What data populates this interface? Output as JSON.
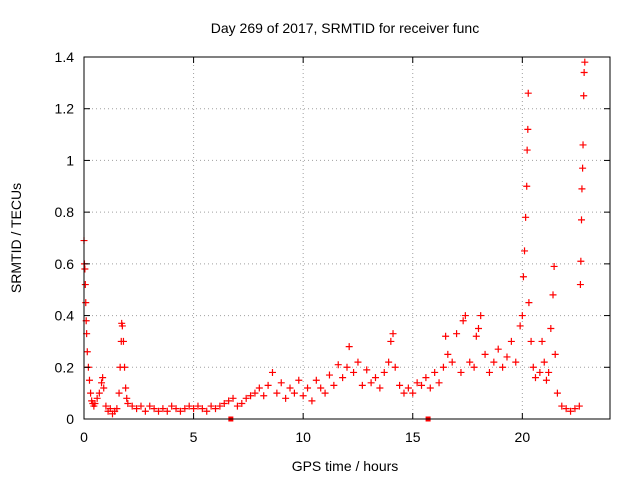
{
  "chart_data": {
    "type": "scatter",
    "title": "Day 269 of 2017, SRMTID for receiver func",
    "xlabel": "GPS time / hours",
    "ylabel": "SRMTID / TECUs",
    "xlim": [
      0,
      24
    ],
    "ylim": [
      0,
      1.4
    ],
    "x_ticks": [
      0,
      5,
      10,
      15,
      20
    ],
    "x_tick_labels": [
      "0",
      "5",
      "10",
      "15",
      "20"
    ],
    "y_ticks": [
      0,
      0.2,
      0.4,
      0.6,
      0.8,
      1.0,
      1.2,
      1.4
    ],
    "y_tick_labels": [
      "0",
      "0.2",
      "0.4",
      "0.6",
      "0.8",
      "1",
      "1.2",
      "1.4"
    ],
    "grid": true,
    "marker": "plus",
    "series": [
      {
        "name": "SRMTID",
        "color": "#ff0000",
        "points": [
          [
            0.0,
            0.69
          ],
          [
            0.02,
            0.6
          ],
          [
            0.04,
            0.58
          ],
          [
            0.06,
            0.52
          ],
          [
            0.08,
            0.45
          ],
          [
            0.1,
            0.38
          ],
          [
            0.12,
            0.33
          ],
          [
            0.15,
            0.26
          ],
          [
            0.2,
            0.2
          ],
          [
            0.25,
            0.15
          ],
          [
            0.3,
            0.1
          ],
          [
            0.35,
            0.07
          ],
          [
            0.4,
            0.06
          ],
          [
            0.45,
            0.05
          ],
          [
            0.5,
            0.06
          ],
          [
            0.6,
            0.08
          ],
          [
            0.7,
            0.1
          ],
          [
            0.8,
            0.14
          ],
          [
            0.85,
            0.16
          ],
          [
            0.9,
            0.12
          ],
          [
            1.0,
            0.05
          ],
          [
            1.1,
            0.03
          ],
          [
            1.2,
            0.04
          ],
          [
            1.3,
            0.02
          ],
          [
            1.4,
            0.03
          ],
          [
            1.5,
            0.04
          ],
          [
            1.6,
            0.1
          ],
          [
            1.65,
            0.2
          ],
          [
            1.7,
            0.3
          ],
          [
            1.72,
            0.37
          ],
          [
            1.75,
            0.36
          ],
          [
            1.8,
            0.3
          ],
          [
            1.85,
            0.2
          ],
          [
            1.9,
            0.12
          ],
          [
            1.95,
            0.08
          ],
          [
            2.0,
            0.06
          ],
          [
            2.2,
            0.05
          ],
          [
            2.4,
            0.04
          ],
          [
            2.6,
            0.05
          ],
          [
            2.8,
            0.03
          ],
          [
            3.0,
            0.05
          ],
          [
            3.2,
            0.04
          ],
          [
            3.4,
            0.03
          ],
          [
            3.6,
            0.04
          ],
          [
            3.8,
            0.03
          ],
          [
            4.0,
            0.05
          ],
          [
            4.2,
            0.04
          ],
          [
            4.4,
            0.03
          ],
          [
            4.6,
            0.04
          ],
          [
            4.8,
            0.05
          ],
          [
            5.0,
            0.04
          ],
          [
            5.2,
            0.05
          ],
          [
            5.4,
            0.04
          ],
          [
            5.6,
            0.03
          ],
          [
            5.8,
            0.05
          ],
          [
            6.0,
            0.04
          ],
          [
            6.2,
            0.05
          ],
          [
            6.4,
            0.06
          ],
          [
            6.6,
            0.07
          ],
          [
            6.8,
            0.08
          ],
          [
            7.0,
            0.05
          ],
          [
            7.2,
            0.06
          ],
          [
            7.4,
            0.08
          ],
          [
            7.6,
            0.09
          ],
          [
            7.8,
            0.1
          ],
          [
            8.0,
            0.12
          ],
          [
            8.2,
            0.09
          ],
          [
            8.4,
            0.13
          ],
          [
            8.6,
            0.18
          ],
          [
            8.8,
            0.1
          ],
          [
            9.0,
            0.14
          ],
          [
            9.2,
            0.08
          ],
          [
            9.4,
            0.12
          ],
          [
            9.6,
            0.1
          ],
          [
            9.8,
            0.15
          ],
          [
            10.0,
            0.09
          ],
          [
            10.2,
            0.12
          ],
          [
            10.4,
            0.07
          ],
          [
            10.6,
            0.15
          ],
          [
            10.8,
            0.12
          ],
          [
            11.0,
            0.1
          ],
          [
            11.2,
            0.17
          ],
          [
            11.4,
            0.13
          ],
          [
            11.6,
            0.21
          ],
          [
            11.8,
            0.16
          ],
          [
            12.0,
            0.2
          ],
          [
            12.1,
            0.28
          ],
          [
            12.3,
            0.18
          ],
          [
            12.5,
            0.22
          ],
          [
            12.7,
            0.13
          ],
          [
            12.9,
            0.19
          ],
          [
            13.1,
            0.14
          ],
          [
            13.3,
            0.16
          ],
          [
            13.5,
            0.12
          ],
          [
            13.7,
            0.18
          ],
          [
            13.9,
            0.22
          ],
          [
            14.0,
            0.3
          ],
          [
            14.1,
            0.33
          ],
          [
            14.2,
            0.2
          ],
          [
            14.4,
            0.13
          ],
          [
            14.6,
            0.1
          ],
          [
            14.8,
            0.12
          ],
          [
            15.0,
            0.1
          ],
          [
            15.2,
            0.14
          ],
          [
            15.4,
            0.13
          ],
          [
            15.6,
            0.16
          ],
          [
            15.8,
            0.12
          ],
          [
            16.0,
            0.18
          ],
          [
            16.2,
            0.14
          ],
          [
            16.4,
            0.2
          ],
          [
            16.5,
            0.32
          ],
          [
            16.6,
            0.25
          ],
          [
            16.8,
            0.22
          ],
          [
            17.0,
            0.33
          ],
          [
            17.2,
            0.18
          ],
          [
            17.3,
            0.38
          ],
          [
            17.4,
            0.4
          ],
          [
            17.6,
            0.22
          ],
          [
            17.8,
            0.2
          ],
          [
            17.9,
            0.32
          ],
          [
            18.0,
            0.35
          ],
          [
            18.1,
            0.4
          ],
          [
            18.3,
            0.25
          ],
          [
            18.5,
            0.18
          ],
          [
            18.7,
            0.22
          ],
          [
            18.9,
            0.27
          ],
          [
            19.1,
            0.2
          ],
          [
            19.3,
            0.24
          ],
          [
            19.5,
            0.3
          ],
          [
            19.7,
            0.22
          ],
          [
            19.9,
            0.36
          ],
          [
            20.0,
            0.4
          ],
          [
            20.05,
            0.55
          ],
          [
            20.1,
            0.65
          ],
          [
            20.15,
            0.78
          ],
          [
            20.2,
            0.9
          ],
          [
            20.22,
            1.04
          ],
          [
            20.25,
            1.12
          ],
          [
            20.27,
            1.26
          ],
          [
            20.3,
            0.45
          ],
          [
            20.4,
            0.3
          ],
          [
            20.5,
            0.2
          ],
          [
            20.6,
            0.16
          ],
          [
            20.8,
            0.18
          ],
          [
            20.9,
            0.3
          ],
          [
            21.0,
            0.22
          ],
          [
            21.1,
            0.15
          ],
          [
            21.2,
            0.18
          ],
          [
            21.3,
            0.35
          ],
          [
            21.4,
            0.48
          ],
          [
            21.45,
            0.59
          ],
          [
            21.5,
            0.25
          ],
          [
            21.6,
            0.1
          ],
          [
            21.8,
            0.05
          ],
          [
            22.0,
            0.04
          ],
          [
            22.2,
            0.03
          ],
          [
            22.4,
            0.04
          ],
          [
            22.6,
            0.05
          ],
          [
            22.65,
            0.52
          ],
          [
            22.67,
            0.61
          ],
          [
            22.7,
            0.77
          ],
          [
            22.72,
            0.89
          ],
          [
            22.75,
            0.97
          ],
          [
            22.77,
            1.06
          ],
          [
            22.8,
            1.25
          ],
          [
            22.82,
            1.34
          ],
          [
            22.85,
            1.38
          ]
        ]
      }
    ],
    "axis_markers": [
      {
        "x": 6.7,
        "y": 0
      },
      {
        "x": 15.7,
        "y": 0
      }
    ]
  }
}
